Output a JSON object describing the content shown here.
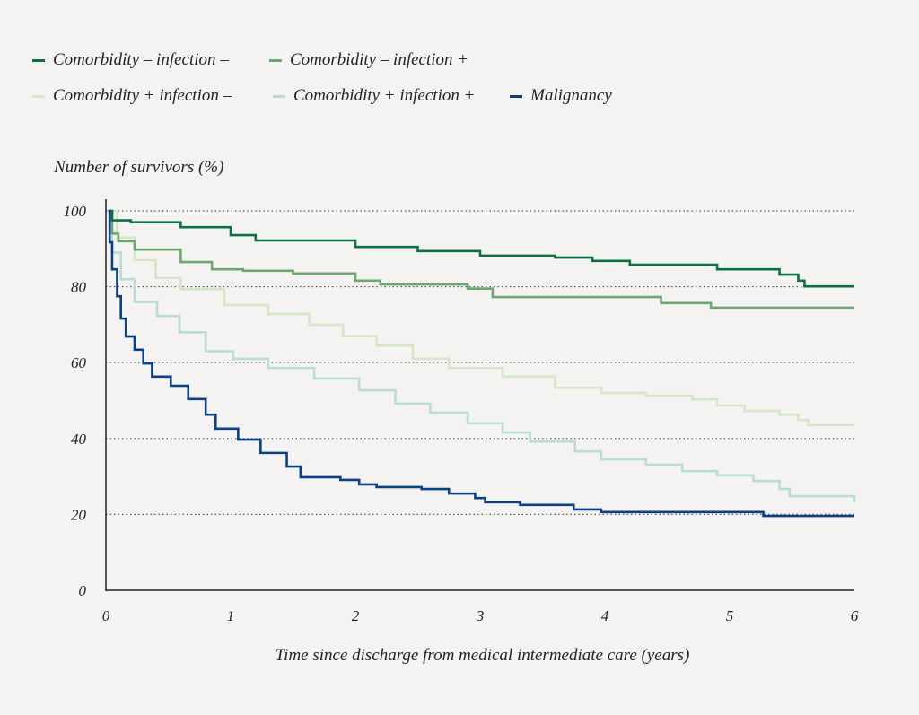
{
  "chart_data": {
    "type": "line",
    "step": true,
    "title": "",
    "xlabel": "Time since discharge from medical intermediate care (years)",
    "ylabel": "Number of survivors (%)",
    "xlim": [
      0,
      6
    ],
    "ylim": [
      0,
      100
    ],
    "xticks": [
      "0",
      "1",
      "2",
      "3",
      "4",
      "5",
      "6"
    ],
    "yticks": [
      "0",
      "20",
      "40",
      "60",
      "80",
      "100"
    ],
    "grid": "horizontal dotted",
    "legend_placement": "top-left",
    "series": [
      {
        "name": "Comorbidity – infection –",
        "color": "#0c7140",
        "x": [
          0.02,
          0.05,
          0.2,
          0.6,
          1.0,
          1.2,
          2.0,
          2.5,
          3.0,
          3.6,
          3.9,
          4.2,
          4.9,
          5.4,
          5.55,
          5.6,
          6.0
        ],
        "y": [
          100,
          97.5,
          97,
          95.7,
          93.6,
          92.2,
          90.5,
          89.4,
          88.2,
          87.7,
          86.8,
          85.8,
          84.6,
          83.2,
          81.6,
          80.1,
          80.1
        ]
      },
      {
        "name": "Comorbidity – infection +",
        "color": "#6aa86f",
        "x": [
          0.02,
          0.05,
          0.1,
          0.23,
          0.6,
          0.85,
          1.1,
          1.5,
          2.0,
          2.2,
          2.9,
          3.1,
          4.45,
          4.85,
          6.0
        ],
        "y": [
          100,
          94,
          92,
          89.8,
          86.5,
          84.6,
          84.2,
          83.5,
          81.6,
          80.6,
          79.5,
          77.3,
          75.7,
          74.5,
          74.5
        ]
      },
      {
        "name": "Comorbidity + infection –",
        "color": "#d5e6c7",
        "x": [
          0.02,
          0.09,
          0.23,
          0.4,
          0.6,
          0.95,
          1.3,
          1.63,
          1.9,
          2.17,
          2.46,
          2.75,
          3.18,
          3.6,
          3.97,
          4.33,
          4.7,
          4.9,
          5.12,
          5.4,
          5.55,
          5.63,
          6.0
        ],
        "y": [
          100,
          93,
          87,
          82.3,
          79.4,
          75.2,
          72.8,
          70,
          67,
          64.5,
          61,
          58.6,
          56.3,
          53.4,
          52,
          51.3,
          50.3,
          48.7,
          47.3,
          46.3,
          44.9,
          43.5,
          43.5
        ]
      },
      {
        "name": "Comorbidity + infection +",
        "color": "#b8dcd6",
        "x": [
          0.02,
          0.05,
          0.12,
          0.23,
          0.41,
          0.59,
          0.8,
          1.02,
          1.3,
          1.67,
          2.03,
          2.32,
          2.6,
          2.9,
          3.18,
          3.4,
          3.76,
          3.97,
          4.33,
          4.62,
          4.9,
          5.19,
          5.4,
          5.48,
          6.0
        ],
        "y": [
          100,
          89,
          82,
          76,
          72.3,
          68,
          63,
          61,
          58.6,
          55.8,
          52.7,
          49.2,
          46.8,
          44,
          41.6,
          39.2,
          36.6,
          34.5,
          33.1,
          31.4,
          30.3,
          28.8,
          26.7,
          24.8,
          23.2
        ]
      },
      {
        "name": "Malignancy",
        "color": "#0b3f86",
        "x": [
          0.02,
          0.03,
          0.05,
          0.09,
          0.12,
          0.16,
          0.23,
          0.3,
          0.37,
          0.52,
          0.66,
          0.8,
          0.88,
          1.06,
          1.24,
          1.45,
          1.56,
          1.88,
          2.03,
          2.17,
          2.53,
          2.75,
          2.96,
          3.04,
          3.32,
          3.75,
          3.97,
          5.27,
          6.0
        ],
        "y": [
          100,
          91.7,
          84.6,
          77.5,
          71.6,
          66.9,
          63.4,
          59.8,
          56.3,
          53.9,
          50.4,
          46.3,
          42.6,
          39.7,
          36.2,
          32.6,
          29.8,
          29.1,
          27.9,
          27.2,
          26.7,
          25.5,
          24.3,
          23.2,
          22.5,
          21.3,
          20.6,
          19.6,
          19.6
        ]
      }
    ]
  }
}
